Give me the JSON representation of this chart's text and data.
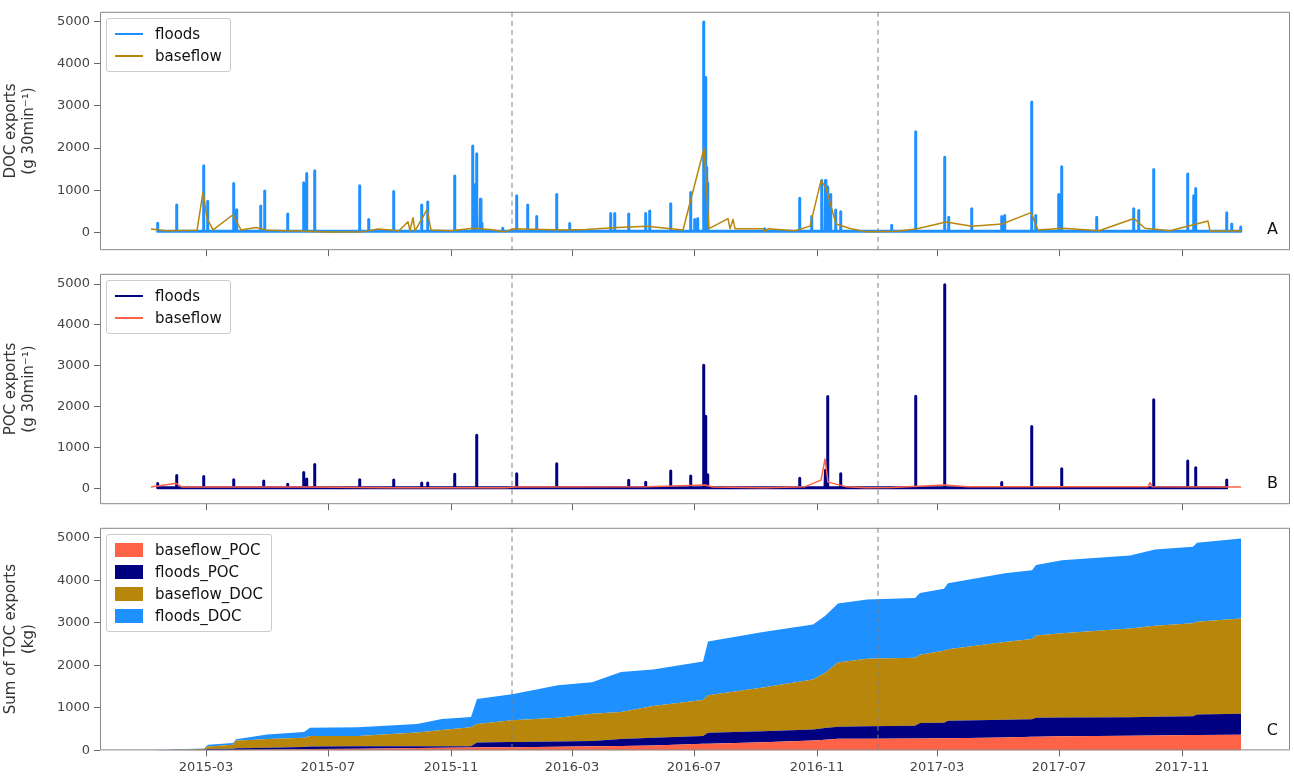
{
  "chart_data": [
    {
      "type": "line",
      "ylabel": "DOC exports\n(g 30min⁻¹)",
      "xlim": [
        "2014-11-15",
        "2018-02-17"
      ],
      "xticks": [
        "2015-03",
        "2015-07",
        "2015-11",
        "2016-03",
        "2016-07",
        "2016-11",
        "2017-03",
        "2017-07",
        "2017-11"
      ],
      "ylim": [
        -420,
        5230
      ],
      "yticks": [
        0,
        1000,
        2000,
        3000,
        4000,
        5000
      ],
      "tick_labels": "y",
      "legend": "top left",
      "annotations": [
        "A"
      ],
      "ref_lines": [
        {
          "axis": "x",
          "value": "2016-01-01",
          "color": "#808080",
          "line_style": "dashed"
        },
        {
          "axis": "x",
          "value": "2017-01-01",
          "color": "#808080",
          "line_style": "dashed"
        }
      ],
      "series": [
        {
          "name": "floods",
          "color": "#1e90ff",
          "x": [
            "2015-01-11",
            "2015-01-11T12:00",
            "2015-01-11T23:00",
            "2015-01-30",
            "2015-01-30T12:00",
            "2015-01-30T23:00",
            "2015-02-26",
            "2015-02-26T12:00",
            "2015-02-26T23:00",
            "2015-03-02",
            "2015-03-02T12:00",
            "2015-03-02T23:00",
            "2015-03-28",
            "2015-03-28T12:00",
            "2015-03-28T23:00",
            "2015-03-31",
            "2015-03-31T12:00",
            "2015-03-31T23:00",
            "2015-04-24",
            "2015-04-24T12:00",
            "2015-04-24T23:00",
            "2015-04-28",
            "2015-04-28T12:00",
            "2015-04-28T23:00",
            "2015-05-21",
            "2015-05-21T12:00",
            "2015-05-21T23:00",
            "2015-06-06",
            "2015-06-06T12:00",
            "2015-06-06T23:00",
            "2015-06-09",
            "2015-06-09T12:00",
            "2015-06-09T23:00",
            "2015-06-17",
            "2015-06-17T12:00",
            "2015-06-17T23:00",
            "2015-08-01",
            "2015-08-01T12:00",
            "2015-08-01T23:00",
            "2015-08-10",
            "2015-08-10T12:00",
            "2015-08-10T23:00",
            "2015-09-04",
            "2015-09-04T12:00",
            "2015-09-04T23:00",
            "2015-10-02",
            "2015-10-02T12:00",
            "2015-10-02T23:00",
            "2015-10-08",
            "2015-10-08T12:00",
            "2015-10-08T23:00",
            "2015-11-04",
            "2015-11-04T12:00",
            "2015-11-04T23:00",
            "2015-11-22",
            "2015-11-22T12:00",
            "2015-11-22T23:00",
            "2015-11-24",
            "2015-11-24T12:00",
            "2015-11-24T23:00",
            "2015-11-26",
            "2015-11-26T12:00",
            "2015-11-26T23:00",
            "2015-11-30",
            "2015-11-30T12:00",
            "2015-11-30T23:00",
            "2015-12-01",
            "2015-12-01T12:00",
            "2015-12-01T23:00",
            "2015-12-22",
            "2015-12-22T12:00",
            "2015-12-22T23:00",
            "2016-01-05",
            "2016-01-05T12:00",
            "2016-01-05T23:00",
            "2016-01-16",
            "2016-01-16T12:00",
            "2016-01-16T23:00",
            "2016-01-25",
            "2016-01-25T12:00",
            "2016-01-25T23:00",
            "2016-02-14",
            "2016-02-14T12:00",
            "2016-02-14T23:00",
            "2016-02-27",
            "2016-02-27T12:00",
            "2016-02-27T23:00",
            "2016-04-08",
            "2016-04-08T12:00",
            "2016-04-08T23:00",
            "2016-04-12",
            "2016-04-12T12:00",
            "2016-04-12T23:00",
            "2016-04-26",
            "2016-04-26T12:00",
            "2016-04-26T23:00",
            "2016-05-13",
            "2016-05-13T12:00",
            "2016-05-13T23:00",
            "2016-05-17",
            "2016-05-17T12:00",
            "2016-05-17T23:00",
            "2016-06-07",
            "2016-06-07T12:00",
            "2016-06-07T23:00",
            "2016-06-27",
            "2016-06-27T12:00",
            "2016-06-27T23:00",
            "2016-07-01",
            "2016-07-01T12:00",
            "2016-07-01T23:00",
            "2016-07-04",
            "2016-07-04T12:00",
            "2016-07-04T23:00",
            "2016-07-10",
            "2016-07-10T12:00",
            "2016-07-10T23:00",
            "2016-07-12",
            "2016-07-12T12:00",
            "2016-07-12T23:00",
            "2016-07-13",
            "2016-07-13T12:00",
            "2016-07-13T23:00",
            "2016-07-14",
            "2016-07-14T12:00",
            "2016-07-14T23:00",
            "2016-09-09",
            "2016-09-09T12:00",
            "2016-09-09T23:00",
            "2016-10-14",
            "2016-10-14T12:00",
            "2016-10-14T23:00",
            "2016-10-26",
            "2016-10-26T12:00",
            "2016-10-26T23:00",
            "2016-11-05",
            "2016-11-05T12:00",
            "2016-11-05T23:00",
            "2016-11-09",
            "2016-11-09T12:00",
            "2016-11-09T23:00",
            "2016-11-11",
            "2016-11-11T12:00",
            "2016-11-11T23:00",
            "2016-11-14",
            "2016-11-14T12:00",
            "2016-11-14T23:00",
            "2016-11-19",
            "2016-11-19T12:00",
            "2016-11-19T23:00",
            "2016-11-24",
            "2016-11-24T12:00",
            "2016-11-24T23:00",
            "2017-01-14",
            "2017-01-14T12:00",
            "2017-01-14T23:00",
            "2017-02-07",
            "2017-02-07T12:00",
            "2017-02-07T23:00",
            "2017-03-08",
            "2017-03-08T12:00",
            "2017-03-08T23:00",
            "2017-03-12",
            "2017-03-12T12:00",
            "2017-03-12T23:00",
            "2017-04-04",
            "2017-04-04T12:00",
            "2017-04-04T23:00",
            "2017-05-04",
            "2017-05-04T12:00",
            "2017-05-04T23:00",
            "2017-05-07",
            "2017-05-07T12:00",
            "2017-05-07T23:00",
            "2017-06-03",
            "2017-06-03T12:00",
            "2017-06-03T23:00",
            "2017-06-07",
            "2017-06-07T12:00",
            "2017-06-07T23:00",
            "2017-06-30",
            "2017-06-30T12:00",
            "2017-06-30T23:00",
            "2017-07-03",
            "2017-07-03T12:00",
            "2017-07-03T23:00",
            "2017-08-07",
            "2017-08-07T12:00",
            "2017-08-07T23:00",
            "2017-09-13",
            "2017-09-13T12:00",
            "2017-09-13T23:00",
            "2017-09-18",
            "2017-09-18T12:00",
            "2017-09-18T23:00",
            "2017-10-03",
            "2017-10-03T12:00",
            "2017-10-03T23:00",
            "2017-11-06",
            "2017-11-06T12:00",
            "2017-11-06T23:00",
            "2017-11-12",
            "2017-11-12T12:00",
            "2017-11-12T23:00",
            "2017-11-14",
            "2017-11-14T12:00",
            "2017-11-14T23:00",
            "2017-12-15",
            "2017-12-15T12:00",
            "2017-12-15T23:00",
            "2017-12-20",
            "2017-12-20T12:00",
            "2017-12-20T23:00",
            "2017-12-29",
            "2017-12-29T12:00",
            "2017-12-29T23:00"
          ],
          "values": [
            30,
            220,
            30,
            30,
            650,
            30,
            30,
            1580,
            30,
            30,
            740,
            30,
            30,
            1160,
            30,
            30,
            540,
            30,
            30,
            625,
            30,
            30,
            985,
            30,
            30,
            440,
            30,
            30,
            1180,
            30,
            30,
            1400,
            30,
            30,
            1465,
            30,
            30,
            1110,
            30,
            30,
            310,
            30,
            30,
            970,
            30,
            30,
            650,
            30,
            30,
            725,
            30,
            30,
            1340,
            30,
            30,
            2050,
            30,
            30,
            1130,
            30,
            30,
            1865,
            30,
            30,
            790,
            30,
            30,
            220,
            30,
            30,
            100,
            30,
            30,
            870,
            30,
            30,
            650,
            30,
            30,
            380,
            30,
            30,
            900,
            30,
            30,
            210,
            30,
            30,
            450,
            30,
            30,
            450,
            30,
            30,
            440,
            30,
            30,
            450,
            30,
            30,
            510,
            30,
            30,
            680,
            30,
            30,
            950,
            30,
            30,
            310,
            30,
            30,
            330,
            30,
            30,
            4990,
            30,
            30,
            3675,
            30,
            30,
            1540,
            30,
            30,
            1180,
            30,
            30,
            90,
            30,
            30,
            810,
            30,
            30,
            380,
            30,
            30,
            1230,
            30,
            30,
            1230,
            30,
            30,
            1075,
            30,
            30,
            900,
            30,
            30,
            530,
            30,
            30,
            490,
            30,
            30,
            170,
            30,
            30,
            2385,
            30,
            30,
            1780,
            30,
            30,
            360,
            30,
            30,
            560,
            30,
            30,
            380,
            30,
            30,
            400,
            30,
            30,
            3095,
            30,
            30,
            400,
            30,
            30,
            900,
            30,
            30,
            1560,
            30,
            30,
            360,
            30,
            30,
            560,
            30,
            30,
            520,
            30,
            30,
            1490,
            30,
            30,
            1385,
            30,
            30,
            870,
            30,
            30,
            1045,
            30,
            30,
            470,
            30,
            30,
            200,
            30,
            30,
            130,
            30
          ]
        },
        {
          "name": "baseflow",
          "color": "#b8860b",
          "x": [
            "2015-01-05",
            "2015-01-20",
            "2015-02-20",
            "2015-02-26",
            "2015-03-02",
            "2015-03-08",
            "2015-03-28",
            "2015-04-05",
            "2015-04-20",
            "2015-05-01",
            "2015-06-10",
            "2015-07-01",
            "2015-08-05",
            "2015-08-20",
            "2015-09-10",
            "2015-09-19",
            "2015-09-21",
            "2015-09-24",
            "2015-09-26",
            "2015-10-08",
            "2015-10-12",
            "2015-11-01",
            "2015-11-23",
            "2015-12-10",
            "2015-12-25",
            "2016-01-03",
            "2016-02-20",
            "2016-03-15",
            "2016-04-15",
            "2016-05-15",
            "2016-06-20",
            "2016-07-11",
            "2016-07-16",
            "2016-08-04",
            "2016-08-06",
            "2016-08-09",
            "2016-08-11",
            "2016-09-08",
            "2016-09-10",
            "2016-09-13",
            "2016-10-10",
            "2016-10-25",
            "2016-11-05",
            "2016-11-10",
            "2016-11-20",
            "2016-12-05",
            "2016-12-20",
            "2017-01-20",
            "2017-02-08",
            "2017-03-10",
            "2017-04-05",
            "2017-05-05",
            "2017-06-03",
            "2017-06-10",
            "2017-07-05",
            "2017-08-10",
            "2017-09-14",
            "2017-09-25",
            "2017-10-20",
            "2017-11-27",
            "2017-11-29",
            "2017-12-30"
          ],
          "values": [
            80,
            40,
            50,
            960,
            335,
            60,
            420,
            60,
            120,
            50,
            30,
            10,
            20,
            80,
            40,
            255,
            40,
            350,
            40,
            540,
            60,
            40,
            100,
            70,
            20,
            90,
            60,
            70,
            120,
            150,
            60,
            1990,
            90,
            330,
            90,
            310,
            90,
            90,
            20,
            90,
            40,
            150,
            1230,
            1055,
            200,
            90,
            20,
            30,
            80,
            250,
            150,
            200,
            470,
            60,
            100,
            40,
            330,
            100,
            40,
            270,
            30,
            40
          ]
        }
      ]
    },
    {
      "type": "line",
      "ylabel": "POC exports\n(g 30min⁻¹)",
      "xlim": [
        "2014-11-15",
        "2018-02-17"
      ],
      "xticks": [
        "2015-03",
        "2015-07",
        "2015-11",
        "2016-03",
        "2016-07",
        "2016-11",
        "2017-03",
        "2017-07",
        "2017-11"
      ],
      "ylim": [
        -390,
        5250
      ],
      "yticks": [
        0,
        1000,
        2000,
        3000,
        4000,
        5000
      ],
      "tick_labels": "y",
      "legend": "top left",
      "annotations": [
        "B"
      ],
      "ref_lines": [
        {
          "axis": "x",
          "value": "2016-01-01",
          "color": "#808080",
          "line_style": "dashed"
        },
        {
          "axis": "x",
          "value": "2017-01-01",
          "color": "#808080",
          "line_style": "dashed"
        }
      ],
      "series": [
        {
          "name": "floods",
          "color": "#000080",
          "x": [
            "2015-01-11",
            "2015-01-11T12:00",
            "2015-01-11T23:00",
            "2015-01-30",
            "2015-01-30T12:00",
            "2015-01-30T23:00",
            "2015-02-26",
            "2015-02-26T12:00",
            "2015-02-26T23:00",
            "2015-03-28",
            "2015-03-28T12:00",
            "2015-03-28T23:00",
            "2015-04-27",
            "2015-04-27T12:00",
            "2015-04-27T23:00",
            "2015-05-21",
            "2015-05-21T12:00",
            "2015-05-21T23:00",
            "2015-06-06",
            "2015-06-06T12:00",
            "2015-06-06T23:00",
            "2015-06-09",
            "2015-06-09T12:00",
            "2015-06-09T23:00",
            "2015-06-17",
            "2015-06-17T12:00",
            "2015-06-17T23:00",
            "2015-08-01",
            "2015-08-01T12:00",
            "2015-08-01T23:00",
            "2015-09-04",
            "2015-09-04T12:00",
            "2015-09-04T23:00",
            "2015-10-02",
            "2015-10-02T12:00",
            "2015-10-02T23:00",
            "2015-10-08",
            "2015-10-08T12:00",
            "2015-10-08T23:00",
            "2015-11-04",
            "2015-11-04T12:00",
            "2015-11-04T23:00",
            "2015-11-26",
            "2015-11-26T12:00",
            "2015-11-26T23:00",
            "2016-01-05",
            "2016-01-05T12:00",
            "2016-01-05T23:00",
            "2016-02-14",
            "2016-02-14T12:00",
            "2016-02-14T23:00",
            "2016-04-26",
            "2016-04-26T12:00",
            "2016-04-26T23:00",
            "2016-05-13",
            "2016-05-13T12:00",
            "2016-05-13T23:00",
            "2016-06-07",
            "2016-06-07T12:00",
            "2016-06-07T23:00",
            "2016-06-27",
            "2016-06-27T12:00",
            "2016-06-27T23:00",
            "2016-07-10",
            "2016-07-10T12:00",
            "2016-07-10T23:00",
            "2016-07-12",
            "2016-07-12T12:00",
            "2016-07-12T23:00",
            "2016-07-14",
            "2016-07-14T12:00",
            "2016-07-14T23:00",
            "2016-10-14",
            "2016-10-14T12:00",
            "2016-10-14T23:00",
            "2016-11-09",
            "2016-11-09T12:00",
            "2016-11-09T23:00",
            "2016-11-11",
            "2016-11-11T12:00",
            "2016-11-11T23:00",
            "2016-11-24",
            "2016-11-24T12:00",
            "2016-11-24T23:00",
            "2017-02-07",
            "2017-02-07T12:00",
            "2017-02-07T23:00",
            "2017-03-08",
            "2017-03-08T12:00",
            "2017-03-08T23:00",
            "2017-05-04",
            "2017-05-04T12:00",
            "2017-05-04T23:00",
            "2017-06-03",
            "2017-06-03T12:00",
            "2017-06-03T23:00",
            "2017-07-03",
            "2017-07-03T12:00",
            "2017-07-03T23:00",
            "2017-10-03",
            "2017-10-03T12:00",
            "2017-10-03T23:00",
            "2017-11-06",
            "2017-11-06T12:00",
            "2017-11-06T23:00",
            "2017-11-14",
            "2017-11-14T12:00",
            "2017-11-14T23:00",
            "2017-12-15",
            "2017-12-15T12:00",
            "2017-12-15T23:00"
          ],
          "values": [
            10,
            115,
            10,
            10,
            315,
            10,
            10,
            290,
            10,
            10,
            210,
            10,
            10,
            175,
            10,
            10,
            100,
            10,
            10,
            385,
            10,
            10,
            225,
            10,
            10,
            580,
            10,
            10,
            210,
            10,
            10,
            200,
            10,
            10,
            130,
            10,
            10,
            130,
            10,
            10,
            345,
            10,
            10,
            1300,
            10,
            10,
            355,
            10,
            10,
            600,
            10,
            10,
            195,
            10,
            10,
            150,
            10,
            10,
            420,
            10,
            10,
            300,
            10,
            10,
            3010,
            10,
            10,
            1765,
            10,
            10,
            330,
            10,
            10,
            245,
            10,
            10,
            440,
            10,
            10,
            2245,
            10,
            10,
            355,
            10,
            10,
            2255,
            10,
            10,
            4980,
            10,
            10,
            140,
            10,
            10,
            1515,
            10,
            10,
            475,
            10,
            10,
            2165,
            10,
            10,
            670,
            10,
            10,
            500,
            10,
            10,
            200,
            10
          ]
        },
        {
          "name": "baseflow",
          "color": "#ff6347",
          "x": [
            "2015-01-05",
            "2015-01-30",
            "2015-02-05",
            "2015-06-10",
            "2015-09-01",
            "2015-12-25",
            "2016-01-03",
            "2016-05-15",
            "2016-07-12",
            "2016-07-20",
            "2016-09-10",
            "2016-10-20",
            "2016-11-05",
            "2016-11-09",
            "2016-11-12",
            "2016-11-30",
            "2016-12-20",
            "2017-01-15",
            "2017-03-08",
            "2017-04-01",
            "2017-09-28",
            "2017-09-30",
            "2017-10-02",
            "2017-12-30"
          ],
          "values": [
            30,
            120,
            30,
            30,
            15,
            10,
            30,
            40,
            80,
            30,
            15,
            40,
            200,
            715,
            150,
            40,
            10,
            20,
            80,
            40,
            40,
            140,
            40,
            30
          ]
        }
      ]
    },
    {
      "type": "area",
      "stacked": true,
      "ylabel": "Sum of TOC exports\n(kg)",
      "xlim": [
        "2014-11-15",
        "2018-02-17"
      ],
      "xticks": [
        "2015-03",
        "2015-07",
        "2015-11",
        "2016-03",
        "2016-07",
        "2016-11",
        "2017-03",
        "2017-07",
        "2017-11"
      ],
      "ylim": [
        0,
        5230
      ],
      "yticks": [
        0,
        1000,
        2000,
        3000,
        4000,
        5000
      ],
      "legend": "top left",
      "annotations": [
        "C"
      ],
      "ref_lines": [
        {
          "axis": "x",
          "value": "2016-01-01",
          "color": "#808080",
          "line_style": "dashed"
        },
        {
          "axis": "x",
          "value": "2017-01-01",
          "color": "#808080",
          "line_style": "dashed"
        }
      ],
      "x": [
        "2015-01-05",
        "2015-02-01",
        "2015-02-27",
        "2015-03-03",
        "2015-03-28",
        "2015-03-31",
        "2015-05-01",
        "2015-06-07",
        "2015-06-13",
        "2015-07-31",
        "2015-09-28",
        "2015-10-23",
        "2015-11-21",
        "2015-11-27",
        "2016-01-01",
        "2016-02-16",
        "2016-03-21",
        "2016-04-19",
        "2016-05-21",
        "2016-07-10",
        "2016-07-15",
        "2016-09-08",
        "2016-10-28",
        "2016-11-09",
        "2016-11-22",
        "2016-12-21",
        "2017-02-07",
        "2017-02-12",
        "2017-03-08",
        "2017-03-12",
        "2017-05-08",
        "2017-06-04",
        "2017-06-08",
        "2017-07-04",
        "2017-09-10",
        "2017-10-05",
        "2017-11-12",
        "2017-11-16",
        "2017-12-30"
      ],
      "series": [
        {
          "name": "baseflow_POC",
          "color": "#ff6347",
          "values": [
            0,
            2,
            5,
            6,
            10,
            10,
            18,
            28,
            30,
            40,
            55,
            62,
            70,
            72,
            75,
            85,
            95,
            102,
            115,
            155,
            158,
            190,
            230,
            250,
            275,
            275,
            280,
            280,
            285,
            286,
            305,
            320,
            322,
            330,
            345,
            350,
            360,
            361,
            370
          ]
        },
        {
          "name": "floods_POC",
          "color": "#000080",
          "values": [
            0,
            3,
            10,
            24,
            30,
            40,
            42,
            52,
            60,
            55,
            43,
            38,
            30,
            113,
            125,
            126,
            125,
            163,
            183,
            185,
            257,
            260,
            260,
            275,
            280,
            295,
            300,
            365,
            362,
            409,
            415,
            410,
            443,
            442,
            435,
            440,
            440,
            484,
            490
          ]
        },
        {
          "name": "baseflow_DOC",
          "color": "#b8860b",
          "values": [
            0,
            5,
            25,
            60,
            90,
            180,
            205,
            215,
            250,
            245,
            322,
            380,
            445,
            435,
            510,
            554,
            640,
            635,
            747,
            845,
            880,
            1030,
            1175,
            1295,
            1510,
            1585,
            1595,
            1605,
            1693,
            1680,
            1825,
            1890,
            1935,
            1983,
            2085,
            2140,
            2185,
            2180,
            2240
          ]
        },
        {
          "name": "floods_DOC",
          "color": "#1e90ff",
          "values": [
            0,
            15,
            5,
            40,
            45,
            30,
            110,
            135,
            190,
            205,
            200,
            255,
            240,
            590,
            610,
            765,
            740,
            940,
            855,
            905,
            1265,
            1300,
            1295,
            1335,
            1385,
            1390,
            1405,
            1450,
            1460,
            1555,
            1620,
            1610,
            1655,
            1715,
            1715,
            1790,
            1800,
            1855,
            1880
          ]
        }
      ]
    }
  ]
}
